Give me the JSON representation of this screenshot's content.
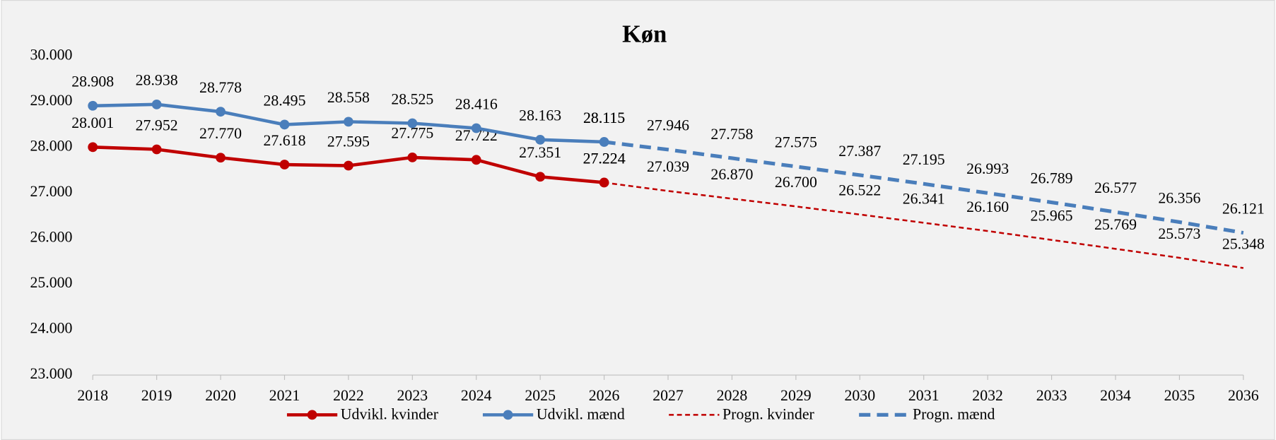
{
  "chart_data": {
    "type": "line",
    "title": "Køn",
    "categories": [
      "2018",
      "2019",
      "2020",
      "2021",
      "2022",
      "2023",
      "2024",
      "2025",
      "2026",
      "2027",
      "2028",
      "2029",
      "2030",
      "2031",
      "2032",
      "2033",
      "2034",
      "2035",
      "2036"
    ],
    "ylim": [
      23000,
      30000
    ],
    "yticks": [
      {
        "value": 23000,
        "label": "23.000"
      },
      {
        "value": 24000,
        "label": "24.000"
      },
      {
        "value": 25000,
        "label": "25.000"
      },
      {
        "value": 26000,
        "label": "26.000"
      },
      {
        "value": 27000,
        "label": "27.000"
      },
      {
        "value": 28000,
        "label": "28.000"
      },
      {
        "value": 29000,
        "label": "29.000"
      },
      {
        "value": 30000,
        "label": "30.000"
      }
    ],
    "grid": false,
    "legend": "bottom",
    "series": [
      {
        "name": "Udvikl. kvinder",
        "color": "#c00000",
        "dashed": false,
        "markers": true,
        "values": [
          28001,
          27952,
          27770,
          27618,
          27595,
          27775,
          27722,
          27351,
          27224,
          null,
          null,
          null,
          null,
          null,
          null,
          null,
          null,
          null,
          null
        ],
        "value_labels": [
          "28.001",
          "27.952",
          "27.770",
          "27.618",
          "27.595",
          "27.775",
          "27.722",
          "27.351",
          "27.224",
          null,
          null,
          null,
          null,
          null,
          null,
          null,
          null,
          null,
          null
        ]
      },
      {
        "name": "Udvikl. mænd",
        "color": "#4a7ebb",
        "dashed": false,
        "markers": true,
        "values": [
          28908,
          28938,
          28778,
          28495,
          28558,
          28525,
          28416,
          28163,
          28115,
          null,
          null,
          null,
          null,
          null,
          null,
          null,
          null,
          null,
          null
        ],
        "value_labels": [
          "28.908",
          "28.938",
          "28.778",
          "28.495",
          "28.558",
          "28.525",
          "28.416",
          "28.163",
          "28.115",
          null,
          null,
          null,
          null,
          null,
          null,
          null,
          null,
          null,
          null
        ]
      },
      {
        "name": "Progn. kvinder",
        "color": "#c00000",
        "dashed": true,
        "markers": false,
        "values": [
          null,
          null,
          null,
          null,
          null,
          null,
          null,
          null,
          27224,
          27039,
          26870,
          26700,
          26522,
          26341,
          26160,
          25965,
          25769,
          25573,
          25348
        ],
        "value_labels": [
          null,
          null,
          null,
          null,
          null,
          null,
          null,
          null,
          "27.224",
          "27.039",
          "26.870",
          "26.700",
          "26.522",
          "26.341",
          "26.160",
          "25.965",
          "25.769",
          "25.573",
          "25.348"
        ]
      },
      {
        "name": "Progn. mænd",
        "color": "#4a7ebb",
        "dashed": true,
        "markers": false,
        "values": [
          null,
          null,
          null,
          null,
          null,
          null,
          null,
          null,
          28115,
          27946,
          27758,
          27575,
          27387,
          27195,
          26993,
          26789,
          26577,
          26356,
          26121
        ],
        "value_labels": [
          null,
          null,
          null,
          null,
          null,
          null,
          null,
          null,
          "28.115",
          "27.946",
          "27.758",
          "27.575",
          "27.387",
          "27.195",
          "26.993",
          "26.789",
          "26.577",
          "26.356",
          "26.121"
        ]
      }
    ]
  }
}
